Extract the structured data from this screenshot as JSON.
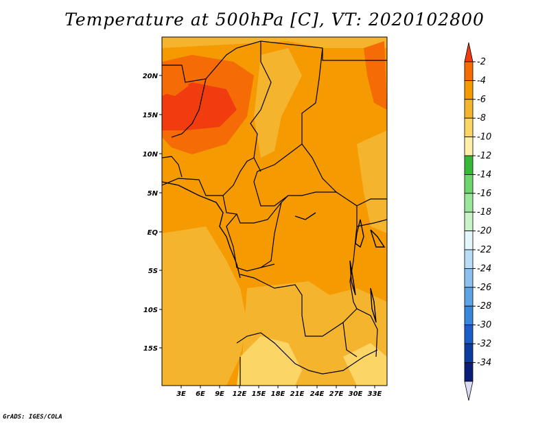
{
  "title": "Temperature at 500hPa [C], VT: 2020102800",
  "credit": "GrADS: IGES/COLA",
  "map": {
    "region": "Central Africa",
    "lat_ticks": [
      "20N",
      "15N",
      "10N",
      "5N",
      "EQ",
      "5S",
      "10S",
      "15S"
    ],
    "lon_ticks": [
      "3E",
      "6E",
      "9E",
      "12E",
      "15E",
      "18E",
      "21E",
      "24E",
      "27E",
      "30E",
      "33E"
    ],
    "background_color": "#f5a623"
  },
  "colorbar": {
    "labels": [
      "-2",
      "-4",
      "-6",
      "-8",
      "-10",
      "-12",
      "-14",
      "-16",
      "-18",
      "-20",
      "-22",
      "-24",
      "-26",
      "-28",
      "-30",
      "-32",
      "-34"
    ],
    "colors": [
      "#f03c0e",
      "#f56b05",
      "#f59a00",
      "#f5b42d",
      "#fbd565",
      "#fdeea8",
      "#38b838",
      "#6dd66d",
      "#9ae69a",
      "#c9f2c9",
      "#e2f6fb",
      "#b9dcf7",
      "#8cc0ef",
      "#5ea3e6",
      "#3a86dc",
      "#1c5ec8",
      "#0c3c9e",
      "#0a1e78",
      "#dcdcf5"
    ]
  }
}
